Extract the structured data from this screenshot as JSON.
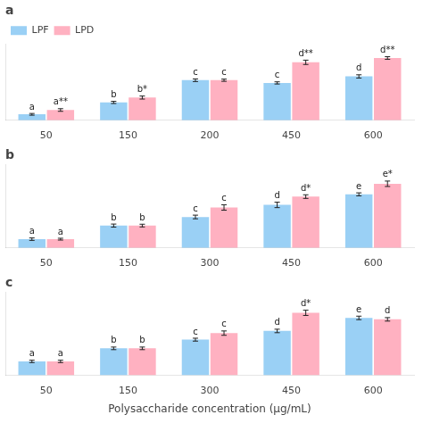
{
  "chart_data": [
    {
      "type": "bar",
      "title": "a",
      "categories": [
        "50",
        "150",
        "200",
        "450",
        "600"
      ],
      "series": [
        {
          "name": "LPF",
          "values": [
            0.055,
            0.165,
            0.37,
            0.345,
            0.405
          ],
          "errors": [
            0.008,
            0.01,
            0.012,
            0.01,
            0.015
          ],
          "annotations": [
            "a",
            "b",
            "c",
            "c",
            "d"
          ]
        },
        {
          "name": "LPD",
          "values": [
            0.095,
            0.21,
            0.37,
            0.535,
            0.575
          ],
          "errors": [
            0.012,
            0.014,
            0.01,
            0.02,
            0.012
          ],
          "annotations": [
            "a**",
            "b*",
            "c",
            "d**",
            "d**"
          ]
        }
      ],
      "ylim": [
        0,
        0.7
      ],
      "tick_labels": "x",
      "grid": false,
      "legend": "upper left"
    },
    {
      "type": "bar",
      "title": "b",
      "categories": [
        "50",
        "150",
        "300",
        "450",
        "600"
      ],
      "series": [
        {
          "name": "LPF",
          "values": [
            0.058,
            0.148,
            0.205,
            0.285,
            0.355
          ],
          "errors": [
            0.008,
            0.01,
            0.012,
            0.018,
            0.01
          ],
          "annotations": [
            "a",
            "b",
            "c",
            "d",
            "e"
          ]
        },
        {
          "name": "LPD",
          "values": [
            0.058,
            0.148,
            0.268,
            0.34,
            0.425
          ],
          "errors": [
            0.006,
            0.009,
            0.018,
            0.012,
            0.018
          ],
          "annotations": [
            "a",
            "b",
            "c",
            "d*",
            "e*"
          ]
        }
      ],
      "ylim": [
        0,
        0.55
      ],
      "tick_labels": "x",
      "grid": false
    },
    {
      "type": "bar",
      "title": "c",
      "categories": [
        "50",
        "150",
        "300",
        "450",
        "600"
      ],
      "series": [
        {
          "name": "LPF",
          "values": [
            0.095,
            0.185,
            0.245,
            0.305,
            0.395
          ],
          "errors": [
            0.008,
            0.009,
            0.01,
            0.012,
            0.012
          ],
          "annotations": [
            "a",
            "b",
            "c",
            "d",
            "e"
          ]
        },
        {
          "name": "LPD",
          "values": [
            0.095,
            0.185,
            0.29,
            0.43,
            0.385
          ],
          "errors": [
            0.008,
            0.009,
            0.015,
            0.018,
            0.012
          ],
          "annotations": [
            "a",
            "b",
            "c",
            "d*",
            "d"
          ]
        }
      ],
      "ylim": [
        0,
        0.57
      ],
      "tick_labels": "x",
      "grid": false,
      "xlabel": "Polysaccharide concentration (μg/mL)"
    }
  ]
}
